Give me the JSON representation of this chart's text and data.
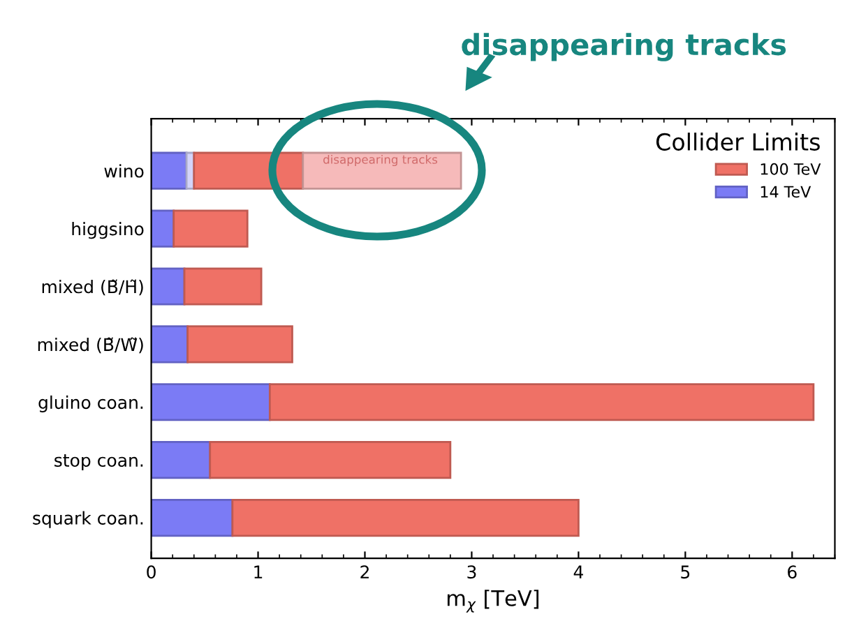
{
  "chart_data": {
    "type": "bar",
    "orientation": "horizontal",
    "stacked": true,
    "categories": [
      "wino",
      "higgsino",
      "mixed (B̃/H̃)",
      "mixed (B̃/W̃)",
      "gluino coan.",
      "stop coan.",
      "squark coan."
    ],
    "series": [
      {
        "name": "14 TeV",
        "color": "#7b7bf5",
        "values": [
          0.33,
          0.21,
          0.31,
          0.34,
          1.11,
          0.55,
          0.76
        ]
      },
      {
        "color": "#d4d4fa",
        "values": [
          0.07,
          null,
          null,
          null,
          null,
          null,
          null
        ]
      },
      {
        "name": "100 TeV",
        "color": "#ef7166",
        "values": [
          1.02,
          0.69,
          0.72,
          0.98,
          5.09,
          2.25,
          3.24
        ]
      },
      {
        "color": "#f6baba",
        "values": [
          1.48,
          null,
          null,
          null,
          null,
          null,
          null
        ]
      }
    ],
    "xlabel": "m$_{χ}$ [TeV]",
    "xlim": [
      0,
      6.4
    ],
    "xticks": [
      0,
      1,
      2,
      3,
      4,
      5,
      6
    ],
    "legend": "top right",
    "legend_title": "Collider Limits",
    "annotations": [
      "disappearing tracks",
      "disappearing tracks"
    ]
  }
}
